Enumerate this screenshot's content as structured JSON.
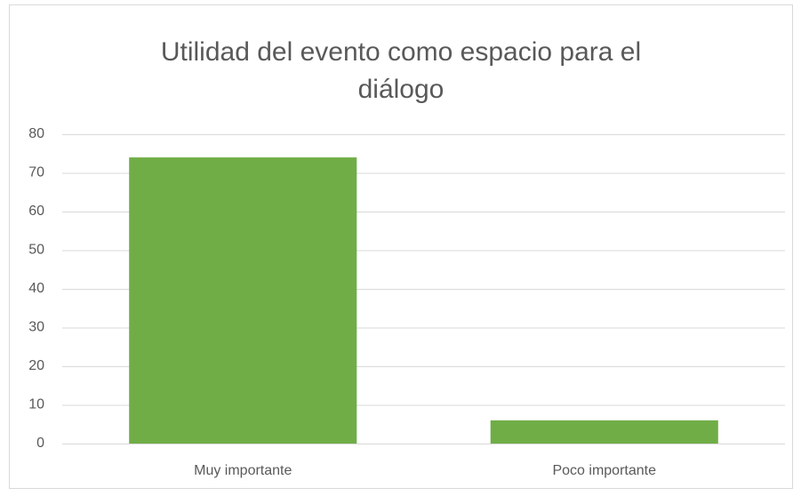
{
  "chart_data": {
    "type": "bar",
    "title": "Utilidad del evento como espacio para el diálogo",
    "categories": [
      "Muy importante",
      "Poco importante"
    ],
    "values": [
      74,
      6
    ],
    "color": "#70ad47",
    "ylim": [
      0,
      80
    ],
    "yticks": [
      0,
      10,
      20,
      30,
      40,
      50,
      60,
      70,
      80
    ],
    "grid": true
  }
}
